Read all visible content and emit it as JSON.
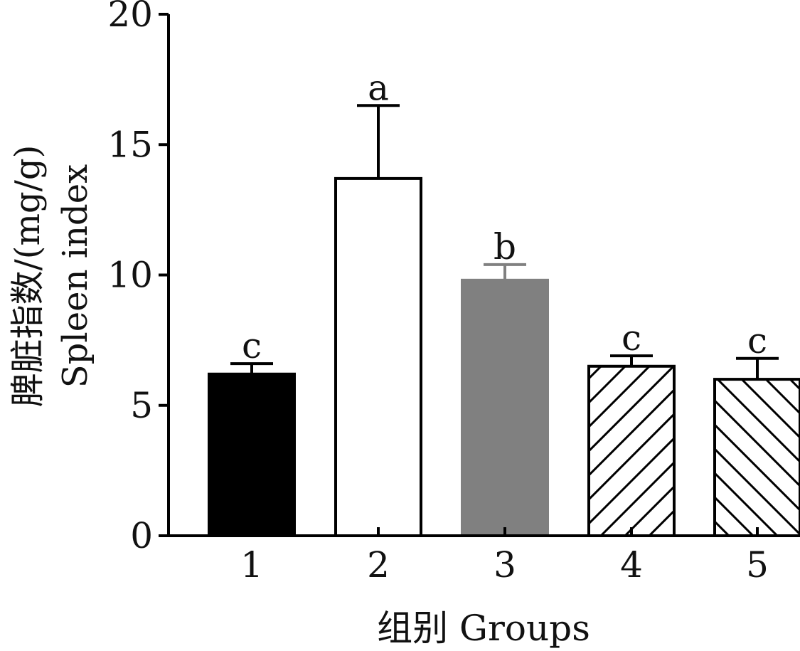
{
  "chart_data": {
    "type": "bar",
    "categories": [
      "1",
      "2",
      "3",
      "4",
      "5"
    ],
    "values": [
      6.2,
      13.7,
      9.8,
      6.5,
      6.0
    ],
    "errors": [
      0.4,
      2.8,
      0.6,
      0.4,
      0.8
    ],
    "significance": [
      "c",
      "a",
      "b",
      "c",
      "c"
    ],
    "fills": [
      "solid-black",
      "white",
      "solid-gray",
      "hatch-up",
      "hatch-down"
    ],
    "colors": {
      "black": "#000000",
      "gray": "#808080",
      "white": "#ffffff"
    },
    "ylim": [
      0,
      20
    ],
    "yticks": [
      0,
      5,
      10,
      15,
      20
    ],
    "xlabel": "组别 Groups",
    "ylabel_line1": "脾脏指数/(mg/g)",
    "ylabel_line2": "Spleen index",
    "grid": false,
    "legend": "none"
  }
}
